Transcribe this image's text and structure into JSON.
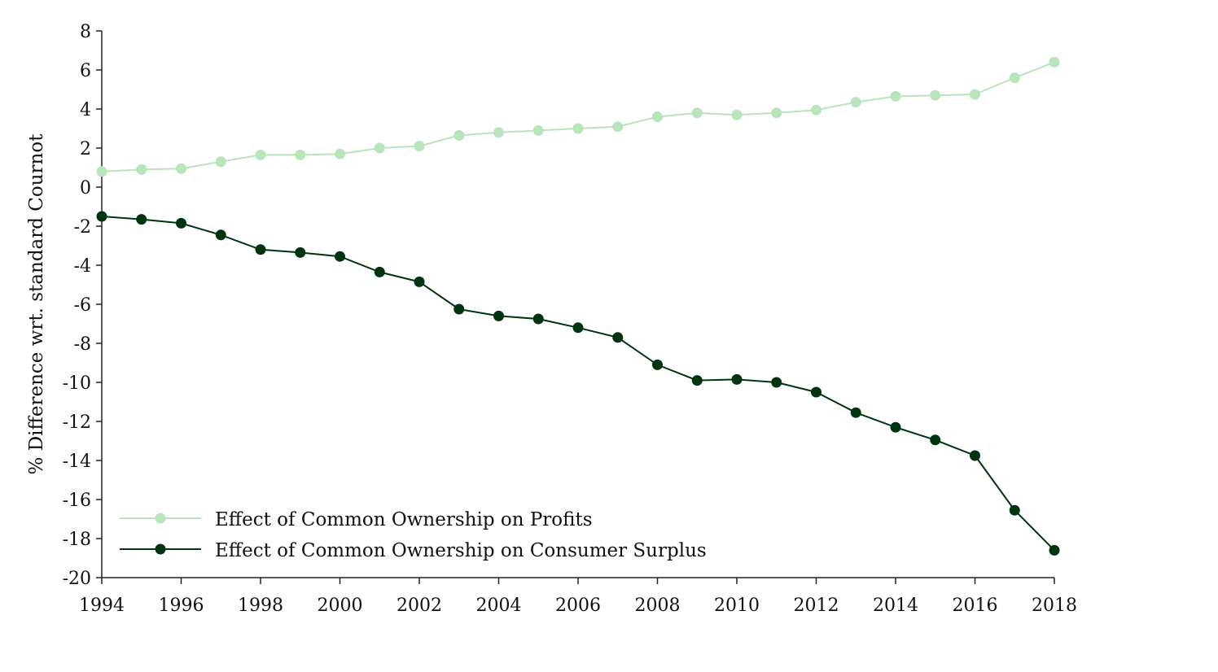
{
  "chart_data": {
    "type": "line",
    "title": "",
    "xlabel": "",
    "ylabel": "% Difference wrt. standard Cournot",
    "xlim": [
      1994,
      2018
    ],
    "ylim": [
      -20,
      8
    ],
    "xticks": [
      1994,
      1996,
      1998,
      2000,
      2002,
      2004,
      2006,
      2008,
      2010,
      2012,
      2014,
      2016,
      2018
    ],
    "yticks": [
      8,
      6,
      4,
      2,
      0,
      -2,
      -4,
      -6,
      -8,
      -10,
      -12,
      -14,
      -16,
      -18,
      -20
    ],
    "grid": false,
    "legend_position": "bottom-left",
    "x": [
      1994,
      1995,
      1996,
      1997,
      1998,
      1999,
      2000,
      2001,
      2002,
      2003,
      2004,
      2005,
      2006,
      2007,
      2008,
      2009,
      2010,
      2011,
      2012,
      2013,
      2014,
      2015,
      2016,
      2017,
      2018
    ],
    "series": [
      {
        "name": "Effect of Common Ownership on Profits",
        "color": "#b9e4bc",
        "values": [
          0.8,
          0.9,
          0.95,
          1.3,
          1.65,
          1.65,
          1.7,
          2.0,
          2.1,
          2.65,
          2.8,
          2.9,
          3.0,
          3.1,
          3.6,
          3.8,
          3.7,
          3.8,
          3.95,
          4.35,
          4.65,
          4.7,
          4.75,
          5.6,
          6.4
        ]
      },
      {
        "name": "Effect of Common Ownership on Consumer Surplus",
        "color": "#00330f",
        "values": [
          -1.5,
          -1.65,
          -1.85,
          -2.45,
          -3.2,
          -3.35,
          -3.55,
          -4.35,
          -4.85,
          -6.25,
          -6.6,
          -6.75,
          -7.2,
          -7.7,
          -9.1,
          -9.9,
          -9.85,
          -10.0,
          -10.5,
          -11.55,
          -12.3,
          -12.95,
          -13.75,
          -16.55,
          -18.6
        ]
      }
    ]
  }
}
